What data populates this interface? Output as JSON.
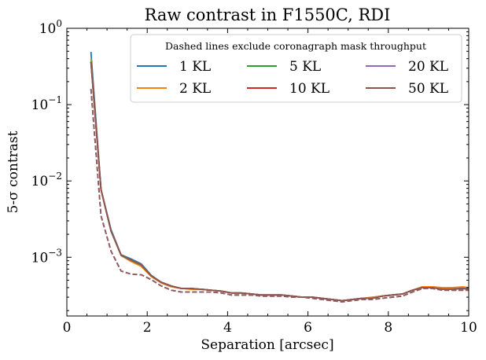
{
  "chart_data": {
    "type": "line",
    "title": "Raw contrast in F1550C, RDI",
    "xlabel": "Separation [arcsec]",
    "ylabel": "5-σ contrast",
    "xlim": [
      0,
      10
    ],
    "ylim": [
      0.00017,
      1.0
    ],
    "yscale": "log",
    "grid": false,
    "legend_title": "Dashed lines exclude coronagraph mask throughput",
    "legend_placement": "top-right",
    "legend_columns": 3,
    "x_ticks": [
      {
        "value": 0,
        "label": "0"
      },
      {
        "value": 2,
        "label": "2"
      },
      {
        "value": 4,
        "label": "4"
      },
      {
        "value": 6,
        "label": "6"
      },
      {
        "value": 8,
        "label": "8"
      },
      {
        "value": 10,
        "label": "10"
      }
    ],
    "y_ticks": [
      {
        "value": 1,
        "base": "10",
        "exp": "0"
      },
      {
        "value": 0.1,
        "base": "10",
        "exp": "−1"
      },
      {
        "value": 0.01,
        "base": "10",
        "exp": "−2"
      },
      {
        "value": 0.001,
        "base": "10",
        "exp": "−3"
      }
    ],
    "x": [
      0.6,
      0.85,
      1.1,
      1.35,
      1.6,
      1.85,
      2.1,
      2.35,
      2.6,
      2.85,
      3.1,
      3.35,
      3.6,
      3.85,
      4.1,
      4.35,
      4.6,
      4.85,
      5.1,
      5.35,
      5.6,
      5.85,
      6.1,
      6.35,
      6.6,
      6.85,
      7.1,
      7.35,
      7.6,
      7.85,
      8.1,
      8.35,
      8.6,
      8.85,
      9.1,
      9.35,
      9.6,
      9.85,
      10.0
    ],
    "series": [
      {
        "name": "1 KL",
        "color": "#1f77b4",
        "values": [
          0.49,
          0.0078,
          0.0023,
          0.00108,
          0.00095,
          0.00082,
          0.00058,
          0.00047,
          0.00042,
          0.00039,
          0.00039,
          0.00038,
          0.00037,
          0.00036,
          0.00034,
          0.00034,
          0.00033,
          0.00032,
          0.00032,
          0.00032,
          0.00031,
          0.0003,
          0.0003,
          0.00029,
          0.00028,
          0.00027,
          0.00028,
          0.00029,
          0.00029,
          0.00031,
          0.00032,
          0.00033,
          0.00037,
          0.00041,
          0.00041,
          0.00039,
          0.00039,
          0.0004,
          0.00039
        ]
      },
      {
        "name": "2 KL",
        "color": "#ff7f0e",
        "values": [
          0.4,
          0.0076,
          0.0022,
          0.00105,
          0.00088,
          0.00076,
          0.00056,
          0.00046,
          0.00041,
          0.00039,
          0.00038,
          0.00038,
          0.00037,
          0.00036,
          0.00034,
          0.00034,
          0.00033,
          0.00032,
          0.00032,
          0.00032,
          0.00031,
          0.0003,
          0.0003,
          0.00029,
          0.00028,
          0.00027,
          0.00028,
          0.00029,
          0.0003,
          0.00031,
          0.00032,
          0.00033,
          0.00037,
          0.00041,
          0.00041,
          0.0004,
          0.0004,
          0.00041,
          0.0004
        ]
      },
      {
        "name": "5 KL",
        "color": "#2ca02c",
        "values": [
          0.37,
          0.0077,
          0.0022,
          0.00106,
          0.00091,
          0.00079,
          0.00057,
          0.00047,
          0.00042,
          0.00039,
          0.00039,
          0.00038,
          0.00037,
          0.00036,
          0.00034,
          0.00034,
          0.00033,
          0.00032,
          0.00032,
          0.00032,
          0.00031,
          0.0003,
          0.0003,
          0.00029,
          0.00028,
          0.00027,
          0.00028,
          0.00029,
          0.00029,
          0.00031,
          0.00032,
          0.00033,
          0.00037,
          0.0004,
          0.0004,
          0.00038,
          0.00038,
          0.00039,
          0.00038
        ]
      },
      {
        "name": "10 KL",
        "color": "#d62728",
        "values": [
          0.36,
          0.0077,
          0.0022,
          0.00107,
          0.00092,
          0.0008,
          0.00057,
          0.00047,
          0.00042,
          0.00039,
          0.00039,
          0.00038,
          0.00037,
          0.00036,
          0.00034,
          0.00034,
          0.00033,
          0.00032,
          0.00032,
          0.00032,
          0.00031,
          0.0003,
          0.0003,
          0.00029,
          0.00028,
          0.00027,
          0.00028,
          0.00029,
          0.00029,
          0.00031,
          0.00032,
          0.00033,
          0.00037,
          0.0004,
          0.0004,
          0.00038,
          0.00038,
          0.00039,
          0.00038
        ]
      },
      {
        "name": "20 KL",
        "color": "#9467bd",
        "values": [
          0.36,
          0.0077,
          0.0022,
          0.00107,
          0.00092,
          0.0008,
          0.00057,
          0.00047,
          0.00042,
          0.00039,
          0.00039,
          0.00038,
          0.00037,
          0.00036,
          0.00034,
          0.00034,
          0.00033,
          0.00032,
          0.00032,
          0.00032,
          0.00031,
          0.0003,
          0.0003,
          0.00029,
          0.00028,
          0.00027,
          0.00028,
          0.00029,
          0.00029,
          0.00031,
          0.00032,
          0.00033,
          0.00037,
          0.0004,
          0.0004,
          0.00038,
          0.00038,
          0.00039,
          0.00038
        ]
      },
      {
        "name": "50 KL",
        "color": "#8c564b",
        "values": [
          0.36,
          0.0077,
          0.0022,
          0.00107,
          0.00092,
          0.0008,
          0.00057,
          0.00047,
          0.00042,
          0.00039,
          0.00039,
          0.00038,
          0.00037,
          0.00036,
          0.00034,
          0.00034,
          0.00033,
          0.00032,
          0.00032,
          0.00032,
          0.00031,
          0.0003,
          0.0003,
          0.00029,
          0.00028,
          0.00027,
          0.00028,
          0.00029,
          0.00029,
          0.00031,
          0.00032,
          0.00033,
          0.00037,
          0.0004,
          0.0004,
          0.00038,
          0.00038,
          0.00039,
          0.00038
        ]
      }
    ],
    "dashed_series": {
      "x": [
        0.6,
        0.85,
        1.1,
        1.35,
        1.6,
        1.85,
        2.1,
        2.35,
        2.6,
        2.85,
        3.1,
        3.35,
        3.6,
        3.85,
        4.1,
        4.35,
        4.6,
        4.85,
        5.1,
        5.35,
        5.6,
        5.85,
        6.1,
        6.35,
        6.6,
        6.85,
        7.1,
        7.35,
        7.6,
        7.85,
        8.1,
        8.35,
        8.6,
        8.85,
        9.1,
        9.35,
        9.6,
        9.85,
        10.0
      ],
      "values": [
        0.16,
        0.0035,
        0.0012,
        0.00066,
        0.0006,
        0.00059,
        0.00051,
        0.00042,
        0.00037,
        0.00035,
        0.00035,
        0.00035,
        0.00035,
        0.00034,
        0.00032,
        0.00032,
        0.00032,
        0.00031,
        0.00031,
        0.00031,
        0.0003,
        0.0003,
        0.00029,
        0.00028,
        0.00027,
        0.00026,
        0.00027,
        0.00028,
        0.00028,
        0.00029,
        0.0003,
        0.00031,
        0.00035,
        0.00039,
        0.00039,
        0.00037,
        0.00037,
        0.00037,
        0.00037
      ]
    }
  }
}
